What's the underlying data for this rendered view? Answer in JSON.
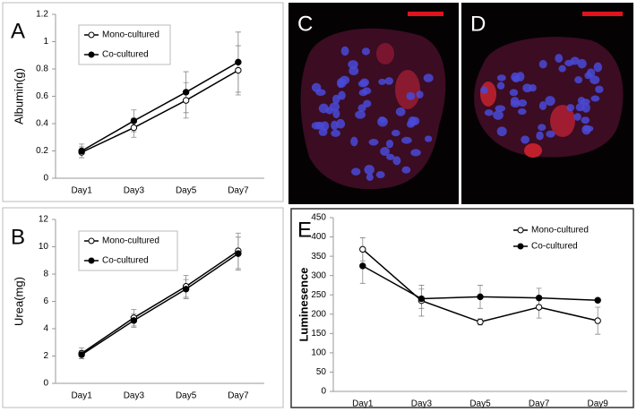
{
  "chart_data": [
    {
      "type": "line",
      "panel": "A",
      "y_label": "Albumin(g)",
      "categories": [
        "Day1",
        "Day3",
        "Day5",
        "Day7"
      ],
      "ylim": [
        0,
        1.2
      ],
      "yticks": [
        0,
        0.2,
        0.4,
        0.6,
        0.8,
        1,
        1.2
      ],
      "legend": "top-left",
      "series": [
        {
          "name": "Mono-cultured",
          "color": "#000000",
          "marker_fill": "#ffffff",
          "values": [
            0.19,
            0.37,
            0.57,
            0.79
          ],
          "errors": [
            0.04,
            0.07,
            0.13,
            0.18
          ]
        },
        {
          "name": "Co-cultured",
          "color": "#000000",
          "marker_fill": "#000000",
          "values": [
            0.2,
            0.42,
            0.63,
            0.85
          ],
          "errors": [
            0.05,
            0.08,
            0.15,
            0.22
          ]
        }
      ]
    },
    {
      "type": "line",
      "panel": "B",
      "y_label": "Urea(mg)",
      "categories": [
        "Day1",
        "Day3",
        "Day5",
        "Day7"
      ],
      "ylim": [
        0,
        12
      ],
      "yticks": [
        0,
        2,
        4,
        6,
        8,
        10,
        12
      ],
      "legend": "top-left",
      "series": [
        {
          "name": "Mono-cultured",
          "color": "#000000",
          "marker_fill": "#ffffff",
          "values": [
            2.2,
            4.8,
            7.1,
            9.7
          ],
          "errors": [
            0.4,
            0.6,
            0.8,
            1.3
          ]
        },
        {
          "name": "Co-cultured",
          "color": "#000000",
          "marker_fill": "#000000",
          "values": [
            2.1,
            4.6,
            6.9,
            9.5
          ],
          "errors": [
            0.3,
            0.5,
            0.7,
            1.2
          ]
        }
      ]
    },
    {
      "type": "line",
      "panel": "E",
      "y_label": "Luminesence",
      "categories": [
        "Day1",
        "Day3",
        "Day5",
        "Day7",
        "Day9"
      ],
      "ylim": [
        0,
        450
      ],
      "yticks": [
        0,
        50,
        100,
        150,
        200,
        250,
        300,
        350,
        400,
        450
      ],
      "legend": "top-right",
      "series": [
        {
          "name": "Mono-cultured",
          "color": "#000000",
          "marker_fill": "#ffffff",
          "values": [
            368,
            235,
            180,
            218,
            183
          ],
          "errors": [
            30,
            40,
            8,
            28,
            35
          ]
        },
        {
          "name": "Co-cultured",
          "color": "#000000",
          "marker_fill": "#000000",
          "values": [
            325,
            240,
            245,
            242,
            236
          ],
          "errors": [
            45,
            25,
            30,
            25,
            5
          ]
        }
      ]
    }
  ],
  "images": [
    {
      "label": "C"
    },
    {
      "label": "D"
    }
  ]
}
